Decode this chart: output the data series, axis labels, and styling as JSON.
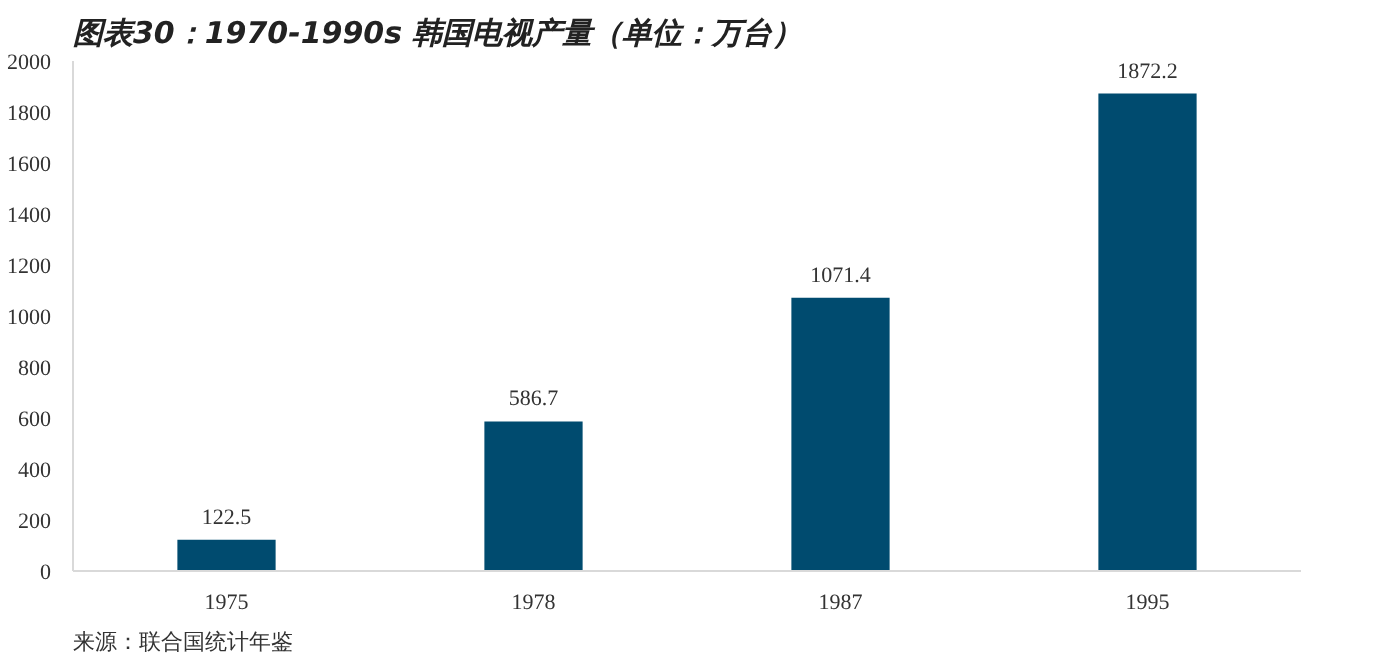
{
  "chart_data": {
    "type": "bar",
    "title": "图表30：1970-1990s 韩国电视产量（单位：万台）",
    "categories": [
      "1975",
      "1978",
      "1987",
      "1995"
    ],
    "values": [
      122.5,
      586.7,
      1071.4,
      1872.2
    ],
    "color": "#004b6f",
    "ylim": [
      0,
      2000
    ],
    "yticks": [
      0,
      200,
      400,
      600,
      800,
      1000,
      1200,
      1400,
      1600,
      1800,
      2000
    ],
    "data_labels": true,
    "grid": false,
    "annotations": [
      "来源：联合国统计年鉴"
    ]
  }
}
